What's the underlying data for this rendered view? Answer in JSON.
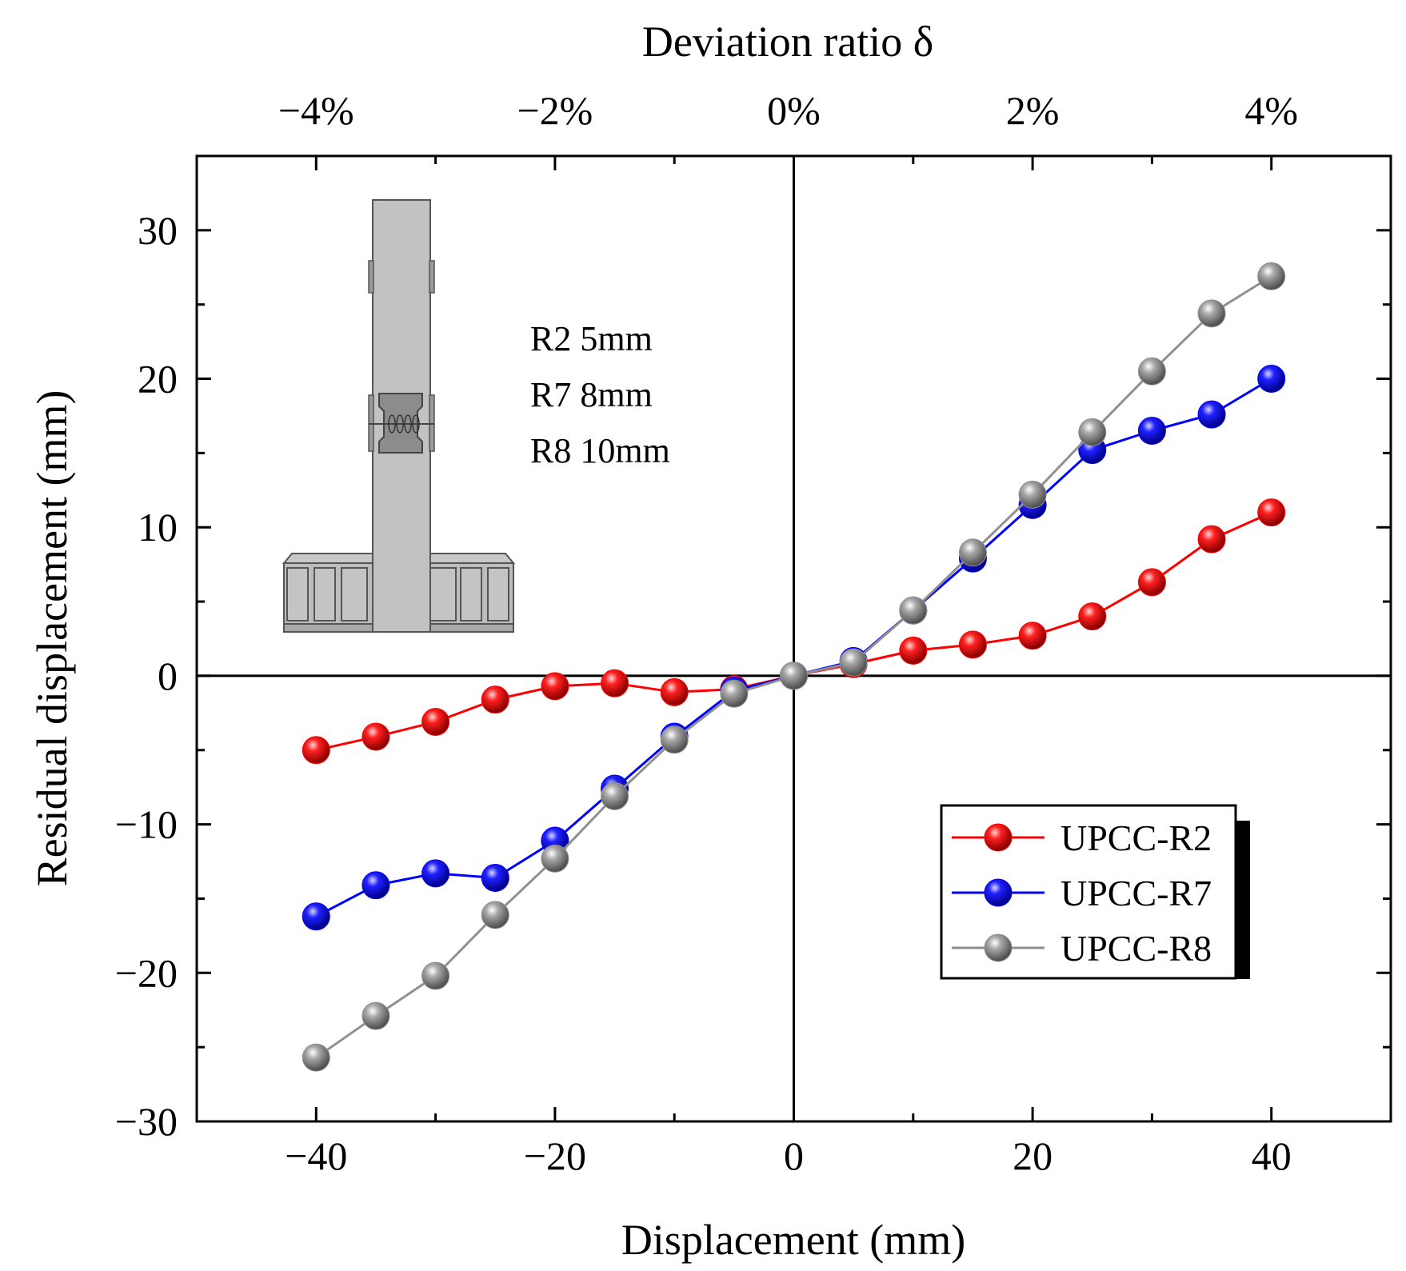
{
  "chart_data": {
    "type": "line",
    "xlabel": "Displacement (mm)",
    "ylabel": "Residual displacement (mm)",
    "x2label": "Deviation ratio δ",
    "xlim": [
      -50,
      50
    ],
    "ylim": [
      -30,
      35
    ],
    "x_ticks": [
      -40,
      -20,
      0,
      20,
      40
    ],
    "x_tick_labels": [
      "−40",
      "−20",
      "0",
      "20",
      "40"
    ],
    "y_ticks": [
      -30,
      -20,
      -10,
      0,
      10,
      20,
      30
    ],
    "y_tick_labels": [
      "−30",
      "−20",
      "−10",
      "0",
      "10",
      "20",
      "30"
    ],
    "x2_ticks": [
      -40,
      -20,
      0,
      20,
      40
    ],
    "x2_tick_labels": [
      "−4%",
      "−2%",
      "0%",
      "2%",
      "4%"
    ],
    "grid": false,
    "legend_position": "bottom-right",
    "annotations": [
      "R2 5mm",
      "R7 8mm",
      "R8 10mm"
    ],
    "x": [
      -40,
      -35,
      -30,
      -25,
      -20,
      -15,
      -10,
      -5,
      0,
      5,
      10,
      15,
      20,
      25,
      30,
      35,
      40
    ],
    "series": [
      {
        "name": "UPCC-R2",
        "color": "#ff0000",
        "values": [
          -5.0,
          -4.1,
          -3.1,
          -1.6,
          -0.7,
          -0.5,
          -1.1,
          -0.9,
          0.0,
          0.8,
          1.7,
          2.1,
          2.7,
          4.0,
          6.3,
          9.2,
          11.0
        ]
      },
      {
        "name": "UPCC-R7",
        "color": "#0000ff",
        "values": [
          -16.2,
          -14.1,
          -13.3,
          -13.6,
          -11.1,
          -7.6,
          -4.1,
          -1.0,
          0.0,
          1.0,
          4.4,
          7.9,
          11.5,
          15.2,
          16.5,
          17.6,
          20.0
        ]
      },
      {
        "name": "UPCC-R8",
        "color": "#909090",
        "values": [
          -25.7,
          -22.9,
          -20.2,
          -16.1,
          -12.3,
          -8.1,
          -4.3,
          -1.2,
          0.0,
          0.9,
          4.4,
          8.3,
          12.2,
          16.4,
          20.5,
          24.4,
          26.9
        ]
      }
    ]
  }
}
